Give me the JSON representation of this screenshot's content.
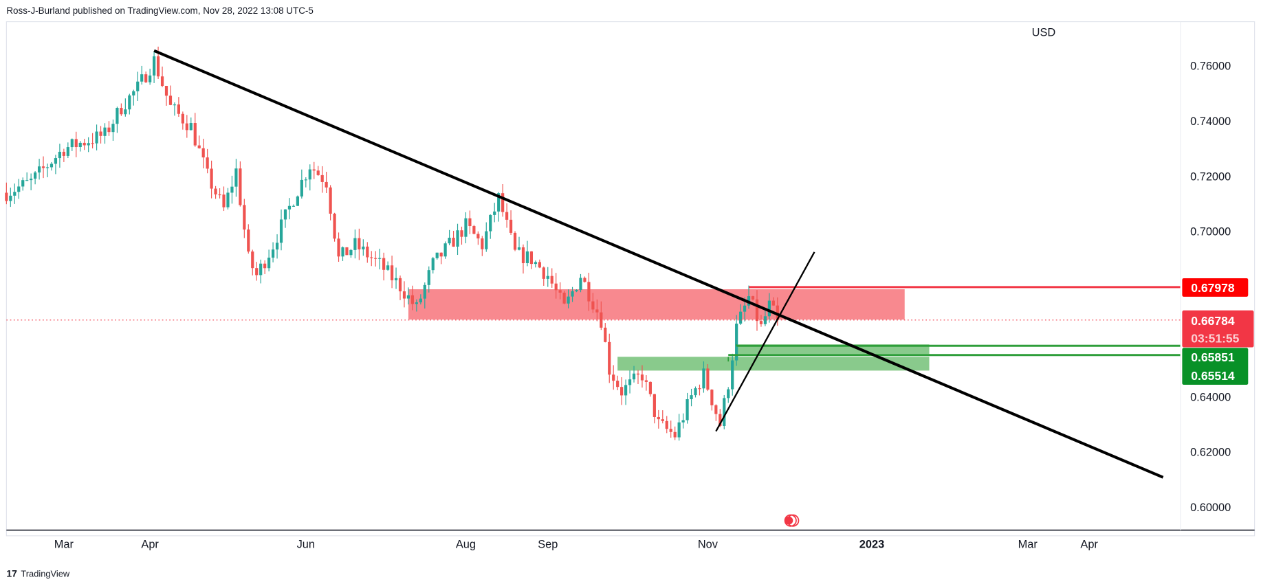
{
  "header": {
    "published": "Ross-J-Burland published on TradingView.com, Nov 28, 2022 13:08 UTC-5"
  },
  "footer": {
    "brand": "TradingView"
  },
  "colors": {
    "up": "#26a69a",
    "down": "#ef5350",
    "resistance_zone": "#f77c83",
    "support_zone": "#7cc47f",
    "red_label": "#ff0000",
    "price_label": "#f23645",
    "green_label": "#089127"
  },
  "chart_data": {
    "type": "candlestick",
    "currency": "USD",
    "yaxis": {
      "ticks": [
        "0.76000",
        "0.74000",
        "0.72000",
        "0.70000",
        "0.64000",
        "0.62000",
        "0.60000"
      ],
      "tick_values": [
        0.76,
        0.74,
        0.72,
        0.7,
        0.64,
        0.62,
        0.6
      ],
      "range": [
        0.592,
        0.775
      ]
    },
    "xaxis": {
      "ticks": [
        {
          "label": "Mar",
          "day": 14
        },
        {
          "label": "Apr",
          "day": 35
        },
        {
          "label": "Jun",
          "day": 73
        },
        {
          "label": "Aug",
          "day": 112
        },
        {
          "label": "Sep",
          "day": 132
        },
        {
          "label": "Nov",
          "day": 171
        },
        {
          "label": "2023",
          "day": 211,
          "bold": true
        },
        {
          "label": "Mar",
          "day": 249
        },
        {
          "label": "Apr",
          "day": 264
        }
      ]
    },
    "price_path": [
      [
        0,
        0.714
      ],
      [
        6,
        0.718
      ],
      [
        14,
        0.73
      ],
      [
        24,
        0.735
      ],
      [
        28,
        0.745
      ],
      [
        32,
        0.752
      ],
      [
        36,
        0.762
      ],
      [
        40,
        0.745
      ],
      [
        45,
        0.738
      ],
      [
        49,
        0.72
      ],
      [
        53,
        0.708
      ],
      [
        56,
        0.722
      ],
      [
        59,
        0.69
      ],
      [
        61,
        0.684
      ],
      [
        65,
        0.695
      ],
      [
        70,
        0.712
      ],
      [
        74,
        0.724
      ],
      [
        78,
        0.718
      ],
      [
        81,
        0.69
      ],
      [
        85,
        0.695
      ],
      [
        91,
        0.688
      ],
      [
        96,
        0.68
      ],
      [
        100,
        0.672
      ],
      [
        104,
        0.688
      ],
      [
        112,
        0.702
      ],
      [
        116,
        0.695
      ],
      [
        120,
        0.712
      ],
      [
        124,
        0.692
      ],
      [
        128,
        0.69
      ],
      [
        132,
        0.684
      ],
      [
        136,
        0.672
      ],
      [
        140,
        0.684
      ],
      [
        145,
        0.668
      ],
      [
        147,
        0.65
      ],
      [
        150,
        0.642
      ],
      [
        155,
        0.648
      ],
      [
        159,
        0.63
      ],
      [
        163,
        0.626
      ],
      [
        167,
        0.64
      ],
      [
        170,
        0.648
      ],
      [
        174,
        0.63
      ],
      [
        176,
        0.645
      ],
      [
        178,
        0.665
      ],
      [
        181,
        0.676
      ],
      [
        184,
        0.665
      ],
      [
        186,
        0.673
      ],
      [
        188,
        0.6678
      ]
    ],
    "levels": [
      {
        "label": "0.67978",
        "value": 0.67978,
        "kind": "resistance"
      },
      {
        "label": "0.66784",
        "value": 0.66784,
        "kind": "last_price",
        "countdown": "03:51:55"
      },
      {
        "label": "0.65851",
        "value": 0.65851,
        "kind": "support"
      },
      {
        "label": "0.65514",
        "value": 0.65514,
        "kind": "support"
      }
    ],
    "zones": [
      {
        "name": "resistance-zone",
        "from_day": 98,
        "to_day": 219,
        "low": 0.668,
        "high": 0.679
      },
      {
        "name": "support-zone-upper",
        "from_day": 178,
        "to_day": 225,
        "low": 0.6555,
        "high": 0.659
      },
      {
        "name": "support-zone-lower",
        "from_day": 149,
        "to_day": 225,
        "low": 0.6495,
        "high": 0.6545
      }
    ],
    "trendlines": [
      {
        "name": "descending-trendline",
        "from": [
          36,
          0.7655
        ],
        "to": [
          282,
          0.6108
        ]
      },
      {
        "name": "ascending-trendline",
        "from": [
          173,
          0.6275
        ],
        "to": [
          197,
          0.6925
        ]
      }
    ]
  }
}
